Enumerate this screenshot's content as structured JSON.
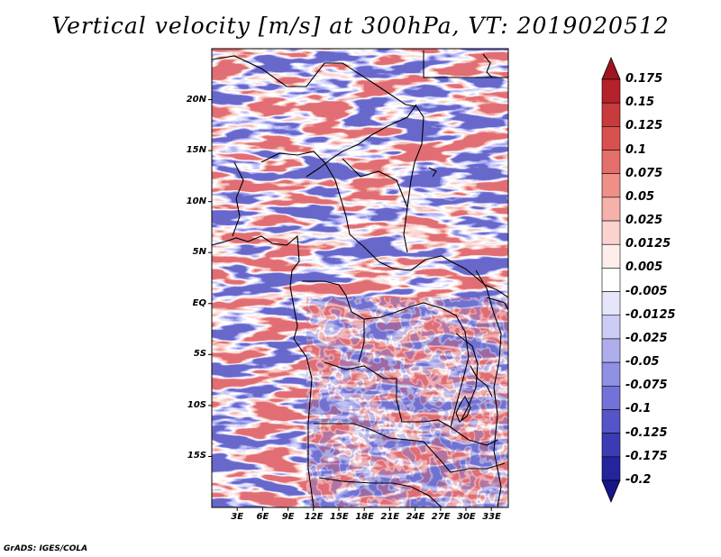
{
  "title": "Vertical velocity [m/s] at 300hPa, VT: 2019020512",
  "footer": "GrADS: IGES/COLA",
  "map": {
    "lon_range": [
      0,
      35
    ],
    "lat_range": [
      -20,
      25
    ],
    "lat_labels": [
      "20N",
      "15N",
      "10N",
      "5N",
      "EQ",
      "5S",
      "10S",
      "15S"
    ],
    "lat_values": [
      20,
      15,
      10,
      5,
      0,
      -5,
      -10,
      -15
    ],
    "lon_labels": [
      "3E",
      "6E",
      "9E",
      "12E",
      "15E",
      "18E",
      "21E",
      "24E",
      "27E",
      "30E",
      "33E"
    ],
    "lon_values": [
      3,
      6,
      9,
      12,
      15,
      18,
      21,
      24,
      27,
      30,
      33
    ]
  },
  "colorbar": {
    "labels": [
      "0.175",
      "0.15",
      "0.125",
      "0.1",
      "0.075",
      "0.05",
      "0.025",
      "0.0125",
      "0.005",
      "-0.005",
      "-0.0125",
      "-0.025",
      "-0.05",
      "-0.075",
      "-0.1",
      "-0.125",
      "-0.175",
      "-0.2"
    ],
    "colors": [
      "#a0141e",
      "#b4222a",
      "#c83a3c",
      "#d9514f",
      "#e46e69",
      "#ee8f88",
      "#f5b1aa",
      "#fad3ce",
      "#fdeeec",
      "#ffffff",
      "#e6e6fb",
      "#ccccf5",
      "#aeaeee",
      "#9090e4",
      "#7272d8",
      "#5555c8",
      "#3b3bb4",
      "#24249c",
      "#16168a"
    ]
  }
}
